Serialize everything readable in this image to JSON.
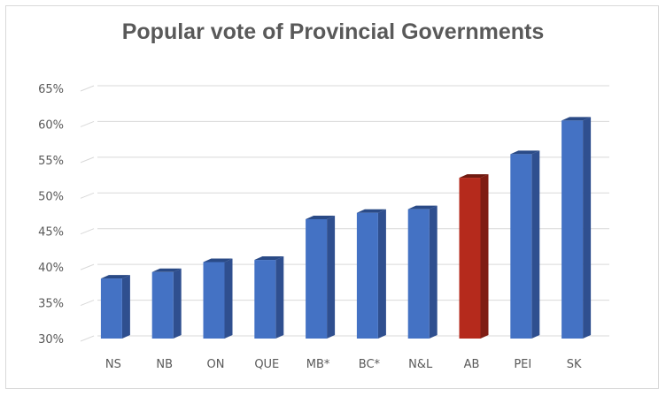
{
  "chart_data": {
    "type": "bar",
    "title": "Popular vote of Provincial Governments",
    "xlabel": "",
    "ylabel": "",
    "categories": [
      "NS",
      "NB",
      "ON",
      "QUE",
      "MB*",
      "BC*",
      "N&L",
      "AB",
      "PEI",
      "SK"
    ],
    "values": [
      38.4,
      39.3,
      40.7,
      41.0,
      46.7,
      47.6,
      48.1,
      52.5,
      55.8,
      60.5
    ],
    "y_ticks": [
      "30%",
      "35%",
      "40%",
      "45%",
      "50%",
      "55%",
      "60%",
      "65%"
    ],
    "ylim": [
      30,
      65
    ],
    "grid": true,
    "legend": "none",
    "colors": {
      "default": "#4472c4",
      "default_side": "#2f4f8f",
      "default_top": "#2a4a86",
      "highlight": "#b52a1c",
      "highlight_side": "#7f1d13",
      "highlight_top": "#701a10",
      "highlight_index": 7,
      "grid": "#d9d9d9"
    }
  }
}
